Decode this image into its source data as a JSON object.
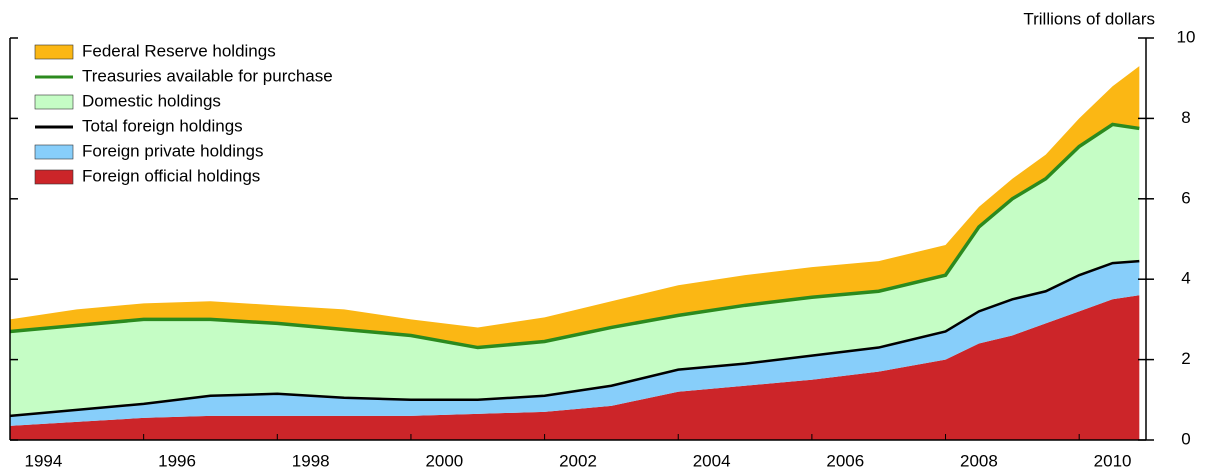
{
  "chart_data": {
    "type": "area",
    "y_axis_label": "Trillions of dollars",
    "x": [
      1994,
      1995,
      1996,
      1997,
      1998,
      1999,
      2000,
      2001,
      2002,
      2003,
      2004,
      2005,
      2006,
      2007,
      2008,
      2008.5,
      2009,
      2009.5,
      2010,
      2010.5,
      2010.9
    ],
    "series": [
      {
        "name": "Federal Reserve holdings",
        "type": "area",
        "color": "#fbb714",
        "values": [
          0.3,
          0.4,
          0.4,
          0.45,
          0.45,
          0.5,
          0.4,
          0.5,
          0.6,
          0.65,
          0.75,
          0.75,
          0.75,
          0.75,
          0.75,
          0.5,
          0.5,
          0.6,
          0.7,
          0.95,
          1.55
        ]
      },
      {
        "name": "Treasuries available for purchase",
        "type": "line",
        "color": "#2b8a1e",
        "values": [
          2.7,
          2.85,
          3.0,
          3.0,
          2.9,
          2.75,
          2.6,
          2.3,
          2.45,
          2.8,
          3.1,
          3.35,
          3.55,
          3.7,
          4.1,
          5.3,
          6.0,
          6.5,
          7.3,
          7.85,
          7.75
        ]
      },
      {
        "name": "Domestic holdings",
        "type": "area",
        "color": "#c5fdc5",
        "values": [
          2.1,
          2.1,
          2.1,
          1.9,
          1.75,
          1.7,
          1.6,
          1.3,
          1.35,
          1.45,
          1.35,
          1.45,
          1.45,
          1.4,
          1.4,
          2.1,
          2.5,
          2.8,
          3.2,
          3.45,
          3.3
        ]
      },
      {
        "name": "Total foreign holdings",
        "type": "line",
        "color": "#000000",
        "values": [
          0.6,
          0.75,
          0.9,
          1.1,
          1.15,
          1.05,
          1.0,
          1.0,
          1.1,
          1.35,
          1.75,
          1.9,
          2.1,
          2.3,
          2.7,
          3.2,
          3.5,
          3.7,
          4.1,
          4.4,
          4.45
        ]
      },
      {
        "name": "Foreign private holdings",
        "type": "area",
        "color": "#87cefa",
        "values": [
          0.25,
          0.3,
          0.35,
          0.5,
          0.55,
          0.45,
          0.4,
          0.35,
          0.4,
          0.5,
          0.55,
          0.55,
          0.6,
          0.6,
          0.7,
          0.8,
          0.9,
          0.8,
          0.9,
          0.9,
          0.85
        ]
      },
      {
        "name": "Foreign official holdings",
        "type": "area",
        "color": "#cc2529",
        "values": [
          0.35,
          0.45,
          0.55,
          0.6,
          0.6,
          0.6,
          0.6,
          0.65,
          0.7,
          0.85,
          1.2,
          1.35,
          1.5,
          1.7,
          2.0,
          2.4,
          2.6,
          2.9,
          3.2,
          3.5,
          3.6
        ]
      }
    ],
    "xlim": [
      1994,
      2011
    ],
    "xticks": [
      1994,
      1996,
      1998,
      2000,
      2002,
      2004,
      2006,
      2008,
      2010
    ],
    "ylim": [
      0,
      10
    ],
    "yticks": [
      0,
      2,
      4,
      6,
      8,
      10
    ],
    "y_axis_side": "right",
    "grid": false
  }
}
